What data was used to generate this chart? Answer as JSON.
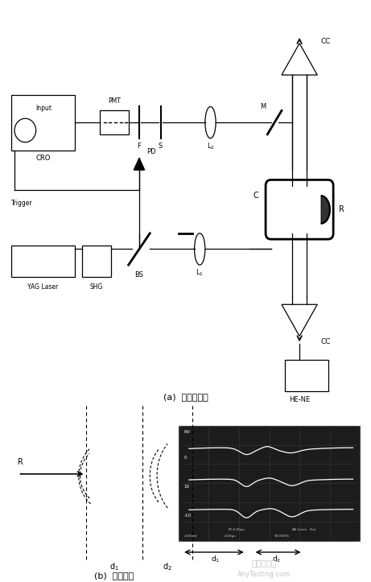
{
  "label_a": "(a)  试验装置图",
  "label_b": "(b)  试验结果",
  "watermark1": "嘉峪检测网",
  "watermark2": "AnyTesting.com"
}
